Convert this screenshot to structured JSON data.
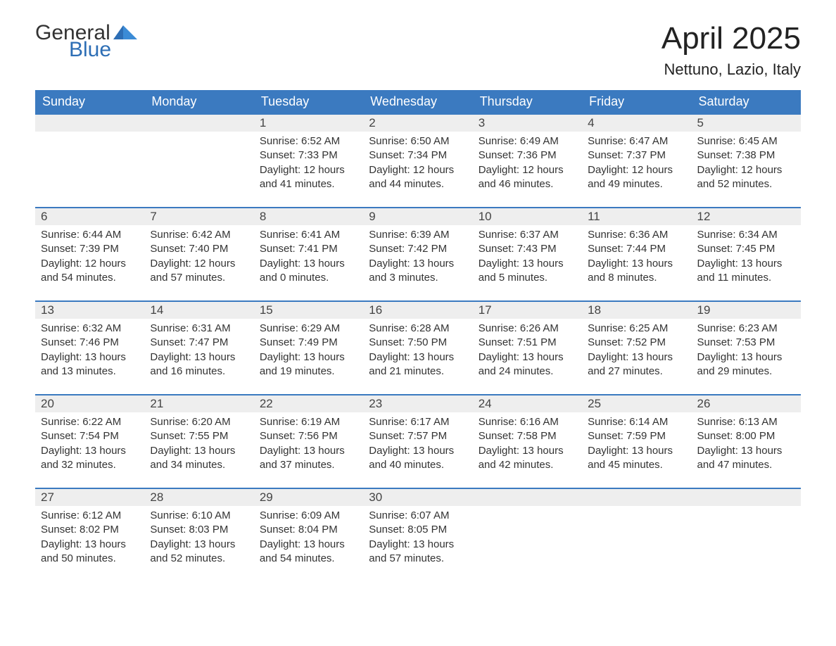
{
  "logo": {
    "word1": "General",
    "word2": "Blue"
  },
  "title": "April 2025",
  "location": "Nettuno, Lazio, Italy",
  "colors": {
    "brand_blue": "#3b7ac0",
    "header_text": "#ffffff",
    "daybar_bg": "#eeeeee",
    "daybar_border": "#3b7ac0",
    "body_text": "#333333",
    "page_bg": "#ffffff"
  },
  "typography": {
    "title_fontsize": 44,
    "location_fontsize": 22,
    "dayheader_fontsize": 18,
    "daynum_fontsize": 17,
    "cell_fontsize": 15
  },
  "calendar": {
    "type": "calendar-table",
    "day_headers": [
      "Sunday",
      "Monday",
      "Tuesday",
      "Wednesday",
      "Thursday",
      "Friday",
      "Saturday"
    ],
    "weeks": [
      [
        null,
        null,
        {
          "n": "1",
          "sunrise": "Sunrise: 6:52 AM",
          "sunset": "Sunset: 7:33 PM",
          "dl1": "Daylight: 12 hours",
          "dl2": "and 41 minutes."
        },
        {
          "n": "2",
          "sunrise": "Sunrise: 6:50 AM",
          "sunset": "Sunset: 7:34 PM",
          "dl1": "Daylight: 12 hours",
          "dl2": "and 44 minutes."
        },
        {
          "n": "3",
          "sunrise": "Sunrise: 6:49 AM",
          "sunset": "Sunset: 7:36 PM",
          "dl1": "Daylight: 12 hours",
          "dl2": "and 46 minutes."
        },
        {
          "n": "4",
          "sunrise": "Sunrise: 6:47 AM",
          "sunset": "Sunset: 7:37 PM",
          "dl1": "Daylight: 12 hours",
          "dl2": "and 49 minutes."
        },
        {
          "n": "5",
          "sunrise": "Sunrise: 6:45 AM",
          "sunset": "Sunset: 7:38 PM",
          "dl1": "Daylight: 12 hours",
          "dl2": "and 52 minutes."
        }
      ],
      [
        {
          "n": "6",
          "sunrise": "Sunrise: 6:44 AM",
          "sunset": "Sunset: 7:39 PM",
          "dl1": "Daylight: 12 hours",
          "dl2": "and 54 minutes."
        },
        {
          "n": "7",
          "sunrise": "Sunrise: 6:42 AM",
          "sunset": "Sunset: 7:40 PM",
          "dl1": "Daylight: 12 hours",
          "dl2": "and 57 minutes."
        },
        {
          "n": "8",
          "sunrise": "Sunrise: 6:41 AM",
          "sunset": "Sunset: 7:41 PM",
          "dl1": "Daylight: 13 hours",
          "dl2": "and 0 minutes."
        },
        {
          "n": "9",
          "sunrise": "Sunrise: 6:39 AM",
          "sunset": "Sunset: 7:42 PM",
          "dl1": "Daylight: 13 hours",
          "dl2": "and 3 minutes."
        },
        {
          "n": "10",
          "sunrise": "Sunrise: 6:37 AM",
          "sunset": "Sunset: 7:43 PM",
          "dl1": "Daylight: 13 hours",
          "dl2": "and 5 minutes."
        },
        {
          "n": "11",
          "sunrise": "Sunrise: 6:36 AM",
          "sunset": "Sunset: 7:44 PM",
          "dl1": "Daylight: 13 hours",
          "dl2": "and 8 minutes."
        },
        {
          "n": "12",
          "sunrise": "Sunrise: 6:34 AM",
          "sunset": "Sunset: 7:45 PM",
          "dl1": "Daylight: 13 hours",
          "dl2": "and 11 minutes."
        }
      ],
      [
        {
          "n": "13",
          "sunrise": "Sunrise: 6:32 AM",
          "sunset": "Sunset: 7:46 PM",
          "dl1": "Daylight: 13 hours",
          "dl2": "and 13 minutes."
        },
        {
          "n": "14",
          "sunrise": "Sunrise: 6:31 AM",
          "sunset": "Sunset: 7:47 PM",
          "dl1": "Daylight: 13 hours",
          "dl2": "and 16 minutes."
        },
        {
          "n": "15",
          "sunrise": "Sunrise: 6:29 AM",
          "sunset": "Sunset: 7:49 PM",
          "dl1": "Daylight: 13 hours",
          "dl2": "and 19 minutes."
        },
        {
          "n": "16",
          "sunrise": "Sunrise: 6:28 AM",
          "sunset": "Sunset: 7:50 PM",
          "dl1": "Daylight: 13 hours",
          "dl2": "and 21 minutes."
        },
        {
          "n": "17",
          "sunrise": "Sunrise: 6:26 AM",
          "sunset": "Sunset: 7:51 PM",
          "dl1": "Daylight: 13 hours",
          "dl2": "and 24 minutes."
        },
        {
          "n": "18",
          "sunrise": "Sunrise: 6:25 AM",
          "sunset": "Sunset: 7:52 PM",
          "dl1": "Daylight: 13 hours",
          "dl2": "and 27 minutes."
        },
        {
          "n": "19",
          "sunrise": "Sunrise: 6:23 AM",
          "sunset": "Sunset: 7:53 PM",
          "dl1": "Daylight: 13 hours",
          "dl2": "and 29 minutes."
        }
      ],
      [
        {
          "n": "20",
          "sunrise": "Sunrise: 6:22 AM",
          "sunset": "Sunset: 7:54 PM",
          "dl1": "Daylight: 13 hours",
          "dl2": "and 32 minutes."
        },
        {
          "n": "21",
          "sunrise": "Sunrise: 6:20 AM",
          "sunset": "Sunset: 7:55 PM",
          "dl1": "Daylight: 13 hours",
          "dl2": "and 34 minutes."
        },
        {
          "n": "22",
          "sunrise": "Sunrise: 6:19 AM",
          "sunset": "Sunset: 7:56 PM",
          "dl1": "Daylight: 13 hours",
          "dl2": "and 37 minutes."
        },
        {
          "n": "23",
          "sunrise": "Sunrise: 6:17 AM",
          "sunset": "Sunset: 7:57 PM",
          "dl1": "Daylight: 13 hours",
          "dl2": "and 40 minutes."
        },
        {
          "n": "24",
          "sunrise": "Sunrise: 6:16 AM",
          "sunset": "Sunset: 7:58 PM",
          "dl1": "Daylight: 13 hours",
          "dl2": "and 42 minutes."
        },
        {
          "n": "25",
          "sunrise": "Sunrise: 6:14 AM",
          "sunset": "Sunset: 7:59 PM",
          "dl1": "Daylight: 13 hours",
          "dl2": "and 45 minutes."
        },
        {
          "n": "26",
          "sunrise": "Sunrise: 6:13 AM",
          "sunset": "Sunset: 8:00 PM",
          "dl1": "Daylight: 13 hours",
          "dl2": "and 47 minutes."
        }
      ],
      [
        {
          "n": "27",
          "sunrise": "Sunrise: 6:12 AM",
          "sunset": "Sunset: 8:02 PM",
          "dl1": "Daylight: 13 hours",
          "dl2": "and 50 minutes."
        },
        {
          "n": "28",
          "sunrise": "Sunrise: 6:10 AM",
          "sunset": "Sunset: 8:03 PM",
          "dl1": "Daylight: 13 hours",
          "dl2": "and 52 minutes."
        },
        {
          "n": "29",
          "sunrise": "Sunrise: 6:09 AM",
          "sunset": "Sunset: 8:04 PM",
          "dl1": "Daylight: 13 hours",
          "dl2": "and 54 minutes."
        },
        {
          "n": "30",
          "sunrise": "Sunrise: 6:07 AM",
          "sunset": "Sunset: 8:05 PM",
          "dl1": "Daylight: 13 hours",
          "dl2": "and 57 minutes."
        },
        null,
        null,
        null
      ]
    ]
  }
}
